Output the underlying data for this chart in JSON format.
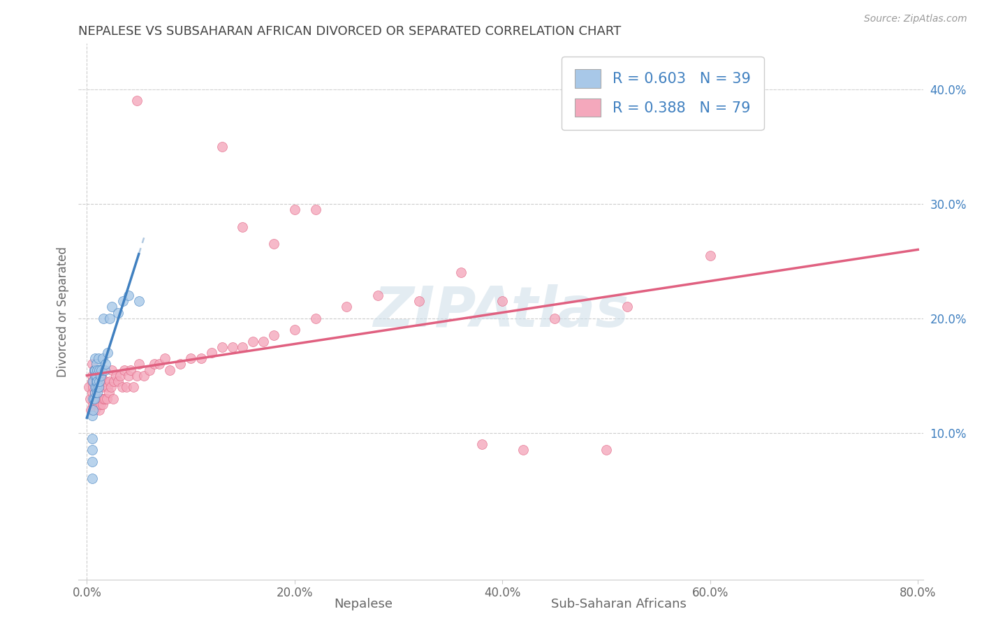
{
  "title": "NEPALESE VS SUBSAHARAN AFRICAN DIVORCED OR SEPARATED CORRELATION CHART",
  "source_text": "Source: ZipAtlas.com",
  "ylabel": "Divorced or Separated",
  "xlabel_nepalese": "Nepalese",
  "xlabel_subsaharan": "Sub-Saharan Africans",
  "nepalese_R": "0.603",
  "nepalese_N": "39",
  "subsaharan_R": "0.388",
  "subsaharan_N": "79",
  "nepalese_color": "#a8c8e8",
  "subsaharan_color": "#f4a8bc",
  "nepalese_line_color": "#4080c0",
  "subsaharan_line_color": "#e06080",
  "nepalese_dash_color": "#b0c8e0",
  "watermark_color": "#ccdde8",
  "xlim_min": -0.008,
  "xlim_max": 0.805,
  "ylim_min": -0.028,
  "ylim_max": 0.44,
  "right_ytick_vals": [
    0.1,
    0.2,
    0.3,
    0.4
  ],
  "right_ytick_labels": [
    "10.0%",
    "20.0%",
    "30.0%",
    "40.0%"
  ],
  "xtick_vals": [
    0.0,
    0.2,
    0.4,
    0.6,
    0.8
  ],
  "xtick_labels": [
    "0.0%",
    "20.0%",
    "40.0%",
    "60.0%",
    "80.0%"
  ],
  "nepalese_x": [
    0.005,
    0.005,
    0.005,
    0.005,
    0.005,
    0.006,
    0.006,
    0.006,
    0.007,
    0.007,
    0.008,
    0.008,
    0.008,
    0.008,
    0.008,
    0.009,
    0.009,
    0.009,
    0.009,
    0.01,
    0.01,
    0.01,
    0.011,
    0.011,
    0.012,
    0.012,
    0.013,
    0.014,
    0.015,
    0.016,
    0.017,
    0.018,
    0.02,
    0.022,
    0.024,
    0.03,
    0.035,
    0.04,
    0.05
  ],
  "nepalese_y": [
    0.06,
    0.075,
    0.085,
    0.095,
    0.115,
    0.12,
    0.13,
    0.145,
    0.13,
    0.155,
    0.135,
    0.14,
    0.15,
    0.155,
    0.165,
    0.14,
    0.145,
    0.15,
    0.16,
    0.135,
    0.145,
    0.155,
    0.14,
    0.165,
    0.145,
    0.155,
    0.15,
    0.155,
    0.165,
    0.2,
    0.155,
    0.16,
    0.17,
    0.2,
    0.21,
    0.205,
    0.215,
    0.22,
    0.215
  ],
  "subsaharan_x": [
    0.002,
    0.003,
    0.004,
    0.005,
    0.005,
    0.005,
    0.005,
    0.006,
    0.006,
    0.007,
    0.007,
    0.007,
    0.008,
    0.008,
    0.008,
    0.009,
    0.009,
    0.01,
    0.01,
    0.011,
    0.011,
    0.012,
    0.012,
    0.013,
    0.013,
    0.014,
    0.014,
    0.015,
    0.015,
    0.015,
    0.016,
    0.016,
    0.017,
    0.018,
    0.019,
    0.02,
    0.021,
    0.022,
    0.023,
    0.024,
    0.025,
    0.026,
    0.028,
    0.03,
    0.032,
    0.034,
    0.036,
    0.038,
    0.04,
    0.042,
    0.045,
    0.048,
    0.05,
    0.055,
    0.06,
    0.065,
    0.07,
    0.075,
    0.08,
    0.09,
    0.1,
    0.11,
    0.12,
    0.13,
    0.14,
    0.15,
    0.16,
    0.17,
    0.18,
    0.2,
    0.22,
    0.25,
    0.28,
    0.32,
    0.36,
    0.4,
    0.45,
    0.52,
    0.6
  ],
  "subsaharan_y": [
    0.14,
    0.13,
    0.12,
    0.135,
    0.145,
    0.15,
    0.16,
    0.125,
    0.14,
    0.13,
    0.145,
    0.155,
    0.12,
    0.135,
    0.15,
    0.125,
    0.14,
    0.13,
    0.145,
    0.125,
    0.14,
    0.12,
    0.145,
    0.125,
    0.14,
    0.13,
    0.15,
    0.125,
    0.14,
    0.155,
    0.13,
    0.145,
    0.13,
    0.145,
    0.13,
    0.14,
    0.135,
    0.145,
    0.14,
    0.155,
    0.13,
    0.145,
    0.15,
    0.145,
    0.15,
    0.14,
    0.155,
    0.14,
    0.15,
    0.155,
    0.14,
    0.15,
    0.16,
    0.15,
    0.155,
    0.16,
    0.16,
    0.165,
    0.155,
    0.16,
    0.165,
    0.165,
    0.17,
    0.175,
    0.175,
    0.175,
    0.18,
    0.18,
    0.185,
    0.19,
    0.2,
    0.21,
    0.22,
    0.215,
    0.24,
    0.215,
    0.2,
    0.21,
    0.255
  ],
  "subsaharan_outliers_x": [
    0.048,
    0.13,
    0.15,
    0.18,
    0.2,
    0.22,
    0.38,
    0.42,
    0.5
  ],
  "subsaharan_outliers_y": [
    0.39,
    0.35,
    0.28,
    0.265,
    0.295,
    0.295,
    0.09,
    0.085,
    0.085
  ]
}
